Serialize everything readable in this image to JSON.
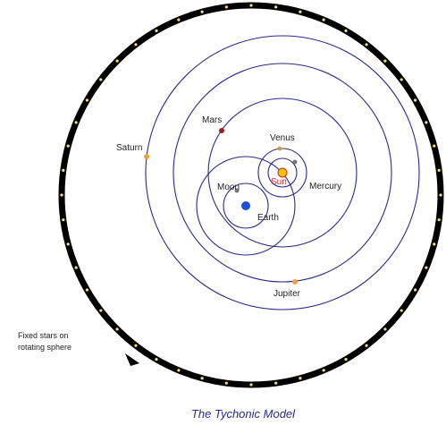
{
  "bodies": {
    "mars": "Mars",
    "venus": "Venus",
    "saturn": "Saturn",
    "sun": "Sun",
    "mercury": "Mercury",
    "moon": "Moon",
    "earth": "Earth",
    "jupiter": "Jupiter"
  },
  "fixed_stars_label": [
    "Fixed stars on",
    "rotating sphere"
  ],
  "caption": "The Tychonic Model"
}
